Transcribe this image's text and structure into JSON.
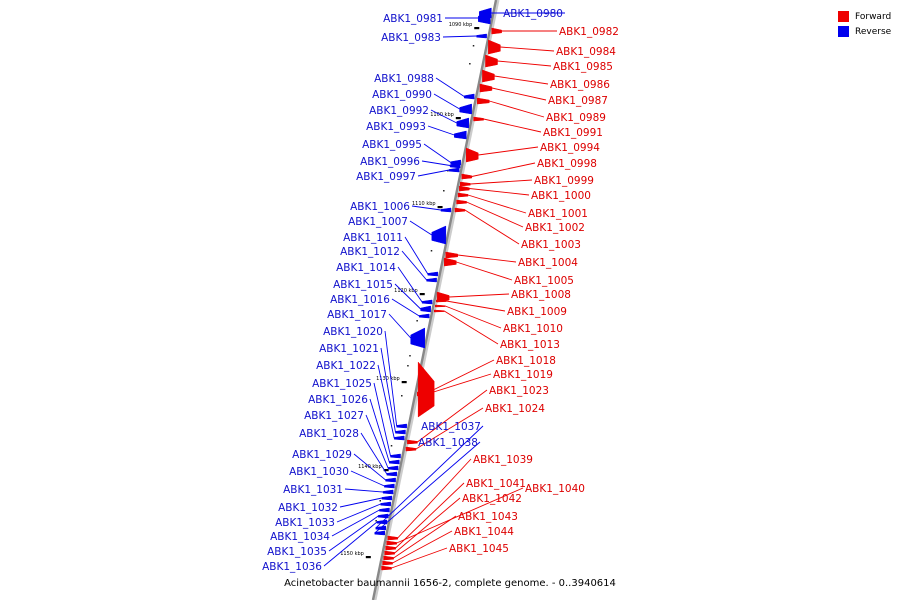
{
  "caption": "Acinetobacter baumannii 1656-2, complete genome. - 0..3940614",
  "legend": {
    "items": [
      {
        "label": "Forward",
        "color": "#ee0000"
      },
      {
        "label": "Reverse",
        "color": "#0000ee"
      }
    ]
  },
  "colors": {
    "forward": "#ee0000",
    "reverse": "#0000ee",
    "forward_label": "#dd0000",
    "reverse_label": "#1111cc",
    "backbone": "#888888"
  },
  "axis": {
    "ticks": [
      {
        "label": "1090 kbp",
        "kbp": 1090
      },
      {
        "label": "1100 kbp",
        "kbp": 1100
      },
      {
        "label": "1110 kbp",
        "kbp": 1110
      },
      {
        "label": "1120 kbp",
        "kbp": 1120
      },
      {
        "label": "1130 kbp",
        "kbp": 1130
      },
      {
        "label": "1140 kbp",
        "kbp": 1140
      },
      {
        "label": "1150 kbp",
        "kbp": 1150
      }
    ]
  },
  "genes": [
    {
      "name": "ABK1_0980",
      "strand": "reverse"
    },
    {
      "name": "ABK1_0981",
      "strand": "reverse"
    },
    {
      "name": "ABK1_0982",
      "strand": "forward"
    },
    {
      "name": "ABK1_0983",
      "strand": "reverse"
    },
    {
      "name": "ABK1_0984",
      "strand": "forward"
    },
    {
      "name": "ABK1_0985",
      "strand": "forward"
    },
    {
      "name": "ABK1_0986",
      "strand": "forward"
    },
    {
      "name": "ABK1_0987",
      "strand": "forward"
    },
    {
      "name": "ABK1_0988",
      "strand": "reverse"
    },
    {
      "name": "ABK1_0989",
      "strand": "forward"
    },
    {
      "name": "ABK1_0990",
      "strand": "reverse"
    },
    {
      "name": "ABK1_0991",
      "strand": "forward"
    },
    {
      "name": "ABK1_0992",
      "strand": "reverse"
    },
    {
      "name": "ABK1_0993",
      "strand": "reverse"
    },
    {
      "name": "ABK1_0994",
      "strand": "forward"
    },
    {
      "name": "ABK1_0995",
      "strand": "reverse"
    },
    {
      "name": "ABK1_0996",
      "strand": "reverse"
    },
    {
      "name": "ABK1_0997",
      "strand": "reverse"
    },
    {
      "name": "ABK1_0998",
      "strand": "forward"
    },
    {
      "name": "ABK1_0999",
      "strand": "forward"
    },
    {
      "name": "ABK1_1000",
      "strand": "forward"
    },
    {
      "name": "ABK1_1001",
      "strand": "forward"
    },
    {
      "name": "ABK1_1002",
      "strand": "forward"
    },
    {
      "name": "ABK1_1003",
      "strand": "forward"
    },
    {
      "name": "ABK1_1004",
      "strand": "forward"
    },
    {
      "name": "ABK1_1005",
      "strand": "forward"
    },
    {
      "name": "ABK1_1006",
      "strand": "reverse"
    },
    {
      "name": "ABK1_1007",
      "strand": "reverse"
    },
    {
      "name": "ABK1_1008",
      "strand": "forward"
    },
    {
      "name": "ABK1_1009",
      "strand": "forward"
    },
    {
      "name": "ABK1_1010",
      "strand": "forward"
    },
    {
      "name": "ABK1_1011",
      "strand": "reverse"
    },
    {
      "name": "ABK1_1012",
      "strand": "reverse"
    },
    {
      "name": "ABK1_1013",
      "strand": "forward"
    },
    {
      "name": "ABK1_1014",
      "strand": "reverse"
    },
    {
      "name": "ABK1_1015",
      "strand": "reverse"
    },
    {
      "name": "ABK1_1016",
      "strand": "reverse"
    },
    {
      "name": "ABK1_1017",
      "strand": "reverse"
    },
    {
      "name": "ABK1_1018",
      "strand": "forward"
    },
    {
      "name": "ABK1_1019",
      "strand": "forward"
    },
    {
      "name": "ABK1_1020",
      "strand": "reverse"
    },
    {
      "name": "ABK1_1021",
      "strand": "reverse"
    },
    {
      "name": "ABK1_1022",
      "strand": "reverse"
    },
    {
      "name": "ABK1_1023",
      "strand": "forward"
    },
    {
      "name": "ABK1_1024",
      "strand": "forward"
    },
    {
      "name": "ABK1_1025",
      "strand": "reverse"
    },
    {
      "name": "ABK1_1026",
      "strand": "reverse"
    },
    {
      "name": "ABK1_1027",
      "strand": "reverse"
    },
    {
      "name": "ABK1_1028",
      "strand": "reverse"
    },
    {
      "name": "ABK1_1029",
      "strand": "reverse"
    },
    {
      "name": "ABK1_1030",
      "strand": "reverse"
    },
    {
      "name": "ABK1_1031",
      "strand": "reverse"
    },
    {
      "name": "ABK1_1032",
      "strand": "reverse"
    },
    {
      "name": "ABK1_1033",
      "strand": "reverse"
    },
    {
      "name": "ABK1_1034",
      "strand": "reverse"
    },
    {
      "name": "ABK1_1035",
      "strand": "reverse"
    },
    {
      "name": "ABK1_1036",
      "strand": "reverse"
    },
    {
      "name": "ABK1_1037",
      "strand": "reverse"
    },
    {
      "name": "ABK1_1038",
      "strand": "reverse"
    },
    {
      "name": "ABK1_1039",
      "strand": "forward"
    },
    {
      "name": "ABK1_1040",
      "strand": "forward"
    },
    {
      "name": "ABK1_1041",
      "strand": "forward"
    },
    {
      "name": "ABK1_1042",
      "strand": "forward"
    },
    {
      "name": "ABK1_1043",
      "strand": "forward"
    },
    {
      "name": "ABK1_1044",
      "strand": "forward"
    },
    {
      "name": "ABK1_1045",
      "strand": "forward"
    }
  ]
}
